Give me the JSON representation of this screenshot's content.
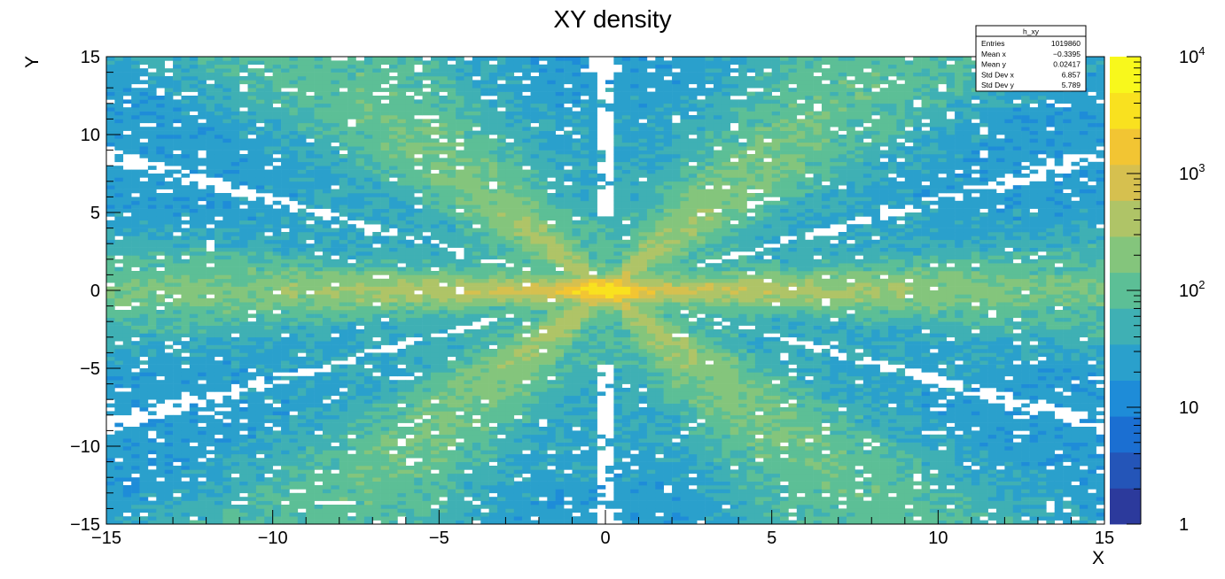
{
  "chart_data": {
    "type": "heatmap",
    "title": "XY density",
    "xlabel": "X",
    "ylabel": "Y",
    "xlim": [
      -15,
      15
    ],
    "ylim": [
      -15,
      15
    ],
    "bins": {
      "x": 120,
      "y": 120
    },
    "x_ticks": [
      "−15",
      "−10",
      "−5",
      "0",
      "5",
      "10",
      "15"
    ],
    "y_ticks": [
      "−15",
      "−10",
      "−5",
      "0",
      "5",
      "10",
      "15"
    ],
    "z_scale": "log",
    "zlim": [
      1,
      10000
    ],
    "z_ticks": [
      {
        "value": 1,
        "label": "1",
        "exp": ""
      },
      {
        "value": 10,
        "label": "10",
        "exp": ""
      },
      {
        "value": 100,
        "label": "10",
        "exp": "2"
      },
      {
        "value": 1000,
        "label": "10",
        "exp": "3"
      },
      {
        "value": 10000,
        "label": "10",
        "exp": "4"
      }
    ],
    "palette": [
      "#2c3a9c",
      "#2455b8",
      "#1b6fd2",
      "#1e8cd8",
      "#2aa0cc",
      "#3fb0b4",
      "#5cbf96",
      "#84c57c",
      "#afc467",
      "#d6c04f",
      "#f2c533",
      "#f9e11f",
      "#f8f81c"
    ],
    "peak": {
      "x": 0.0,
      "y": 0.0,
      "value": 3500
    },
    "description_values": {
      "center_value": 3500,
      "axis_ridge_value": 400,
      "diagonal_ridge_value": 150,
      "background_value": 18
    },
    "stats_box": {
      "name": "h_xy",
      "rows": [
        {
          "label": "Entries",
          "value": "1019860"
        },
        {
          "label": "Mean x",
          "value": "−0.3395"
        },
        {
          "label": "Mean y",
          "value": "0.02417"
        },
        {
          "label": "Std Dev x",
          "value": "6.857"
        },
        {
          "label": "Std Dev y",
          "value": "5.789"
        }
      ]
    }
  }
}
